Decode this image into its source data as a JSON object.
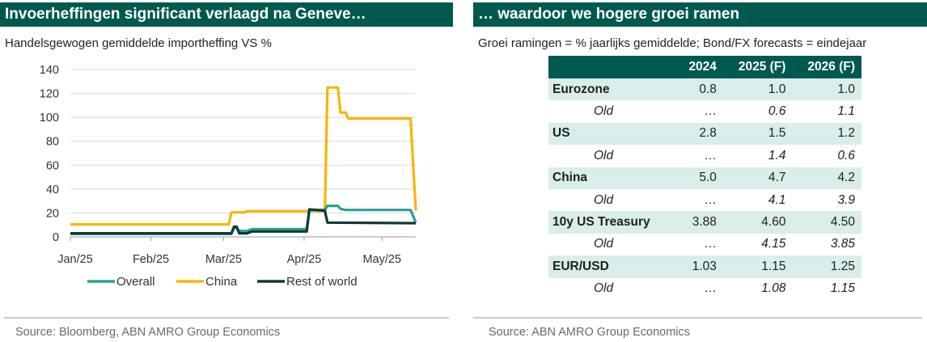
{
  "left": {
    "title": "Invoerheffingen significant verlaagd na Geneve…",
    "subtitle": "Handelsgewogen gemiddelde importheffing VS %",
    "source": "Source: Bloomberg, ABN AMRO Group Economics"
  },
  "right": {
    "title": "… waardoor we hogere groei ramen",
    "subtitle": "Groei ramingen = % jaarlijks gemiddelde; Bond/FX forecasts = eindejaar",
    "source": "Source: ABN AMRO Group Economics",
    "table": {
      "headers": [
        "",
        "2024",
        "2025 (F)",
        "2026 (F)"
      ],
      "rows": [
        {
          "label": "Eurozone",
          "kind": "main",
          "values": [
            "0.8",
            "1.0",
            "1.0"
          ]
        },
        {
          "label": "Old",
          "kind": "old",
          "values": [
            "…",
            "0.6",
            "1.1"
          ]
        },
        {
          "label": "US",
          "kind": "main",
          "values": [
            "2.8",
            "1.5",
            "1.2"
          ]
        },
        {
          "label": "Old",
          "kind": "old",
          "values": [
            "…",
            "1.4",
            "0.6"
          ]
        },
        {
          "label": "China",
          "kind": "main",
          "values": [
            "5.0",
            "4.7",
            "4.2"
          ]
        },
        {
          "label": "Old",
          "kind": "old",
          "values": [
            "…",
            "4.1",
            "3.9"
          ]
        },
        {
          "label": "10y US Treasury",
          "kind": "main",
          "values": [
            "3.88",
            "4.60",
            "4.50"
          ]
        },
        {
          "label": "Old",
          "kind": "old",
          "values": [
            "…",
            "4.15",
            "3.85"
          ]
        },
        {
          "label": "EUR/USD",
          "kind": "main",
          "values": [
            "1.03",
            "1.15",
            "1.25"
          ]
        },
        {
          "label": "Old",
          "kind": "old",
          "values": [
            "…",
            "1.08",
            "1.15"
          ]
        }
      ]
    }
  },
  "colors": {
    "header": "#00594f",
    "row_shade": "#d9eeeb",
    "overall": "#2aa198",
    "china": "#f5b700",
    "rest_of_world": "#0d3b33",
    "grid": "#d9d9d9"
  },
  "chart_data": {
    "type": "line",
    "title": "Handelsgewogen gemiddelde importheffing VS %",
    "x_ticks": [
      "Jan/25",
      "Feb/25",
      "Mar/25",
      "Apr/25",
      "May/25"
    ],
    "x_range": [
      "2025-01-01",
      "2025-05-14"
    ],
    "ylim": [
      0,
      140
    ],
    "y_ticks": [
      0,
      20,
      40,
      60,
      80,
      100,
      120,
      140
    ],
    "grid": "horizontal",
    "legend": "bottom",
    "series": [
      {
        "name": "Overall",
        "points": [
          [
            "2025-01-01",
            2.5
          ],
          [
            "2025-03-04",
            2.5
          ],
          [
            "2025-03-05",
            7.5
          ],
          [
            "2025-03-06",
            7.5
          ],
          [
            "2025-03-07",
            5
          ],
          [
            "2025-03-10",
            5
          ],
          [
            "2025-03-12",
            6.5
          ],
          [
            "2025-04-02",
            6.5
          ],
          [
            "2025-04-03",
            22.5
          ],
          [
            "2025-04-09",
            22.5
          ],
          [
            "2025-04-10",
            26
          ],
          [
            "2025-04-14",
            26
          ],
          [
            "2025-04-15",
            23.5
          ],
          [
            "2025-04-17",
            22.5
          ],
          [
            "2025-05-12",
            22.5
          ],
          [
            "2025-05-14",
            12
          ]
        ]
      },
      {
        "name": "China",
        "points": [
          [
            "2025-01-01",
            10.5
          ],
          [
            "2025-03-03",
            10.5
          ],
          [
            "2025-03-04",
            20.5
          ],
          [
            "2025-03-09",
            20.5
          ],
          [
            "2025-03-10",
            21.5
          ],
          [
            "2025-04-09",
            21.5
          ],
          [
            "2025-04-10",
            125
          ],
          [
            "2025-04-14",
            125
          ],
          [
            "2025-04-15",
            104
          ],
          [
            "2025-04-17",
            104
          ],
          [
            "2025-04-18",
            99
          ],
          [
            "2025-05-12",
            99
          ],
          [
            "2025-05-14",
            22
          ]
        ]
      },
      {
        "name": "Rest of world",
        "points": [
          [
            "2025-01-01",
            3
          ],
          [
            "2025-03-04",
            3
          ],
          [
            "2025-03-05",
            8.5
          ],
          [
            "2025-03-06",
            8.5
          ],
          [
            "2025-03-07",
            3
          ],
          [
            "2025-03-10",
            3
          ],
          [
            "2025-03-12",
            4.5
          ],
          [
            "2025-04-02",
            4.5
          ],
          [
            "2025-04-03",
            23
          ],
          [
            "2025-04-09",
            22
          ],
          [
            "2025-04-10",
            12
          ],
          [
            "2025-05-14",
            11.5
          ]
        ]
      }
    ]
  }
}
